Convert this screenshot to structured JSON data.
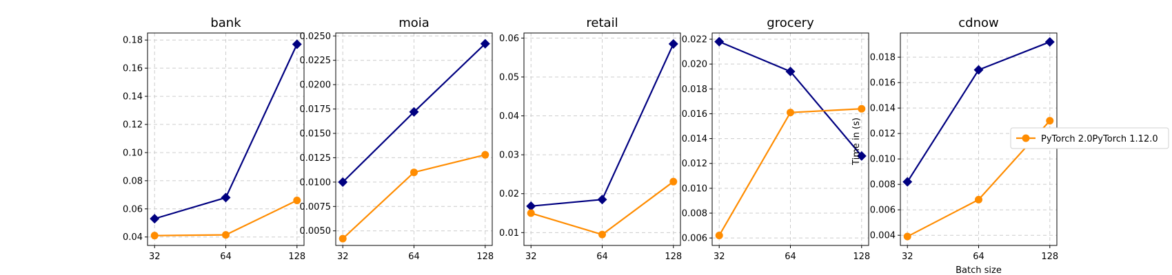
{
  "chart_data": [
    {
      "type": "line",
      "title": "bank",
      "xlabel": "",
      "ylabel": "",
      "x": [
        32,
        64,
        128
      ],
      "x_ticks": [
        "32",
        "64",
        "128"
      ],
      "ylim": [
        0.034,
        0.185
      ],
      "y_ticks": [
        "0.04",
        "0.06",
        "0.08",
        "0.10",
        "0.12",
        "0.14",
        "0.16",
        "0.18"
      ],
      "y_tick_values": [
        0.04,
        0.06,
        0.08,
        0.1,
        0.12,
        0.14,
        0.16,
        0.18
      ],
      "grid": true,
      "series": [
        {
          "color": "#000080",
          "marker": "diamond",
          "values": [
            0.053,
            0.068,
            0.177
          ]
        },
        {
          "color": "#ff8c00",
          "marker": "circle",
          "values": [
            0.041,
            0.0415,
            0.066
          ]
        }
      ]
    },
    {
      "type": "line",
      "title": "moia",
      "xlabel": "",
      "ylabel": "",
      "x": [
        32,
        64,
        128
      ],
      "x_ticks": [
        "32",
        "64",
        "128"
      ],
      "ylim": [
        0.0035,
        0.0253
      ],
      "y_ticks": [
        "0.0050",
        "0.0075",
        "0.0100",
        "0.0125",
        "0.0150",
        "0.0175",
        "0.0200",
        "0.0225",
        "0.0250"
      ],
      "y_tick_values": [
        0.005,
        0.0075,
        0.01,
        0.0125,
        0.015,
        0.0175,
        0.02,
        0.0225,
        0.025
      ],
      "grid": true,
      "series": [
        {
          "color": "#000080",
          "marker": "diamond",
          "values": [
            0.01,
            0.0172,
            0.0242
          ]
        },
        {
          "color": "#ff8c00",
          "marker": "circle",
          "values": [
            0.0042,
            0.011,
            0.0128
          ]
        }
      ]
    },
    {
      "type": "line",
      "title": "retail",
      "xlabel": "",
      "ylabel": "",
      "x": [
        32,
        64,
        128
      ],
      "x_ticks": [
        "32",
        "64",
        "128"
      ],
      "ylim": [
        0.0067,
        0.0613
      ],
      "y_ticks": [
        "0.01",
        "0.02",
        "0.03",
        "0.04",
        "0.05",
        "0.06"
      ],
      "y_tick_values": [
        0.01,
        0.02,
        0.03,
        0.04,
        0.05,
        0.06
      ],
      "grid": true,
      "series": [
        {
          "color": "#000080",
          "marker": "diamond",
          "values": [
            0.0168,
            0.0185,
            0.0585
          ]
        },
        {
          "color": "#ff8c00",
          "marker": "circle",
          "values": [
            0.015,
            0.0095,
            0.0231
          ]
        }
      ]
    },
    {
      "type": "line",
      "title": "grocery",
      "xlabel": "",
      "ylabel": "",
      "x": [
        32,
        64,
        128
      ],
      "x_ticks": [
        "32",
        "64",
        "128"
      ],
      "ylim": [
        0.0054,
        0.0225
      ],
      "y_ticks": [
        "0.006",
        "0.008",
        "0.010",
        "0.012",
        "0.014",
        "0.016",
        "0.018",
        "0.020",
        "0.022"
      ],
      "y_tick_values": [
        0.006,
        0.008,
        0.01,
        0.012,
        0.014,
        0.016,
        0.018,
        0.02,
        0.022
      ],
      "grid": true,
      "series": [
        {
          "color": "#000080",
          "marker": "diamond",
          "values": [
            0.0218,
            0.0194,
            0.0126
          ]
        },
        {
          "color": "#ff8c00",
          "marker": "circle",
          "values": [
            0.0062,
            0.0161,
            0.0164
          ]
        }
      ]
    },
    {
      "type": "line",
      "title": "cdnow",
      "xlabel": "Batch size",
      "ylabel": "Time in (s)",
      "x": [
        32,
        64,
        128
      ],
      "x_ticks": [
        "32",
        "64",
        "128"
      ],
      "ylim": [
        0.0032,
        0.0199
      ],
      "y_ticks": [
        "0.004",
        "0.006",
        "0.008",
        "0.010",
        "0.012",
        "0.014",
        "0.016",
        "0.018"
      ],
      "y_tick_values": [
        0.004,
        0.006,
        0.008,
        0.01,
        0.012,
        0.014,
        0.016,
        0.018
      ],
      "grid": true,
      "series": [
        {
          "color": "#000080",
          "marker": "diamond",
          "values": [
            0.0082,
            0.017,
            0.0192
          ]
        },
        {
          "color": "#ff8c00",
          "marker": "circle",
          "values": [
            0.0039,
            0.0068,
            0.013
          ]
        }
      ]
    }
  ],
  "legend": {
    "placement": "right",
    "entries": [
      {
        "label": "PyTorch 2.0PyTorch 1.12.0",
        "color": "#ff8c00",
        "marker": "circle"
      }
    ]
  }
}
